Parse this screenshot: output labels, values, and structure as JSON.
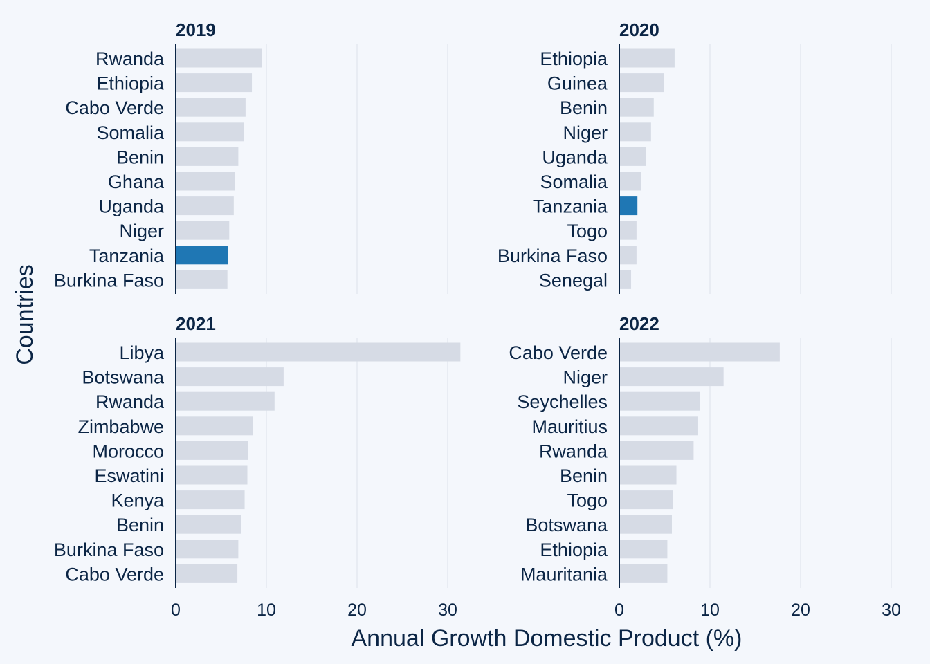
{
  "chart_data": {
    "type": "bar",
    "orientation": "horizontal",
    "xlabel": "Annual Growth Domestic Product (%)",
    "ylabel": "Countries",
    "xlim": [
      0,
      30
    ],
    "xticks": [
      0,
      10,
      20,
      30
    ],
    "grid": "vertical",
    "colors": {
      "default": "#d6dbe5",
      "highlight": "#1f77b4",
      "text": "#0b2545",
      "grid": "#dde2ea",
      "axis": "#0b2545"
    },
    "highlight_category": "Tanzania",
    "panels": [
      {
        "title": "2019",
        "categories": [
          "Rwanda",
          "Ethiopia",
          "Cabo Verde",
          "Somalia",
          "Benin",
          "Ghana",
          "Uganda",
          "Niger",
          "Tanzania",
          "Burkina Faso"
        ],
        "values": [
          9.5,
          8.4,
          7.7,
          7.5,
          6.9,
          6.5,
          6.4,
          5.9,
          5.8,
          5.7
        ]
      },
      {
        "title": "2020",
        "categories": [
          "Ethiopia",
          "Guinea",
          "Benin",
          "Niger",
          "Uganda",
          "Somalia",
          "Tanzania",
          "Togo",
          "Burkina Faso",
          "Senegal"
        ],
        "values": [
          6.1,
          4.9,
          3.8,
          3.5,
          2.9,
          2.4,
          2.0,
          1.9,
          1.9,
          1.3
        ]
      },
      {
        "title": "2021",
        "categories": [
          "Libya",
          "Botswana",
          "Rwanda",
          "Zimbabwe",
          "Morocco",
          "Eswatini",
          "Kenya",
          "Benin",
          "Burkina Faso",
          "Cabo Verde"
        ],
        "values": [
          31.4,
          11.9,
          10.9,
          8.5,
          8.0,
          7.9,
          7.6,
          7.2,
          6.9,
          6.8
        ]
      },
      {
        "title": "2022",
        "categories": [
          "Cabo Verde",
          "Niger",
          "Seychelles",
          "Mauritius",
          "Rwanda",
          "Benin",
          "Togo",
          "Botswana",
          "Ethiopia",
          "Mauritania"
        ],
        "values": [
          17.7,
          11.5,
          8.9,
          8.7,
          8.2,
          6.3,
          5.9,
          5.8,
          5.3,
          5.3
        ]
      }
    ]
  }
}
